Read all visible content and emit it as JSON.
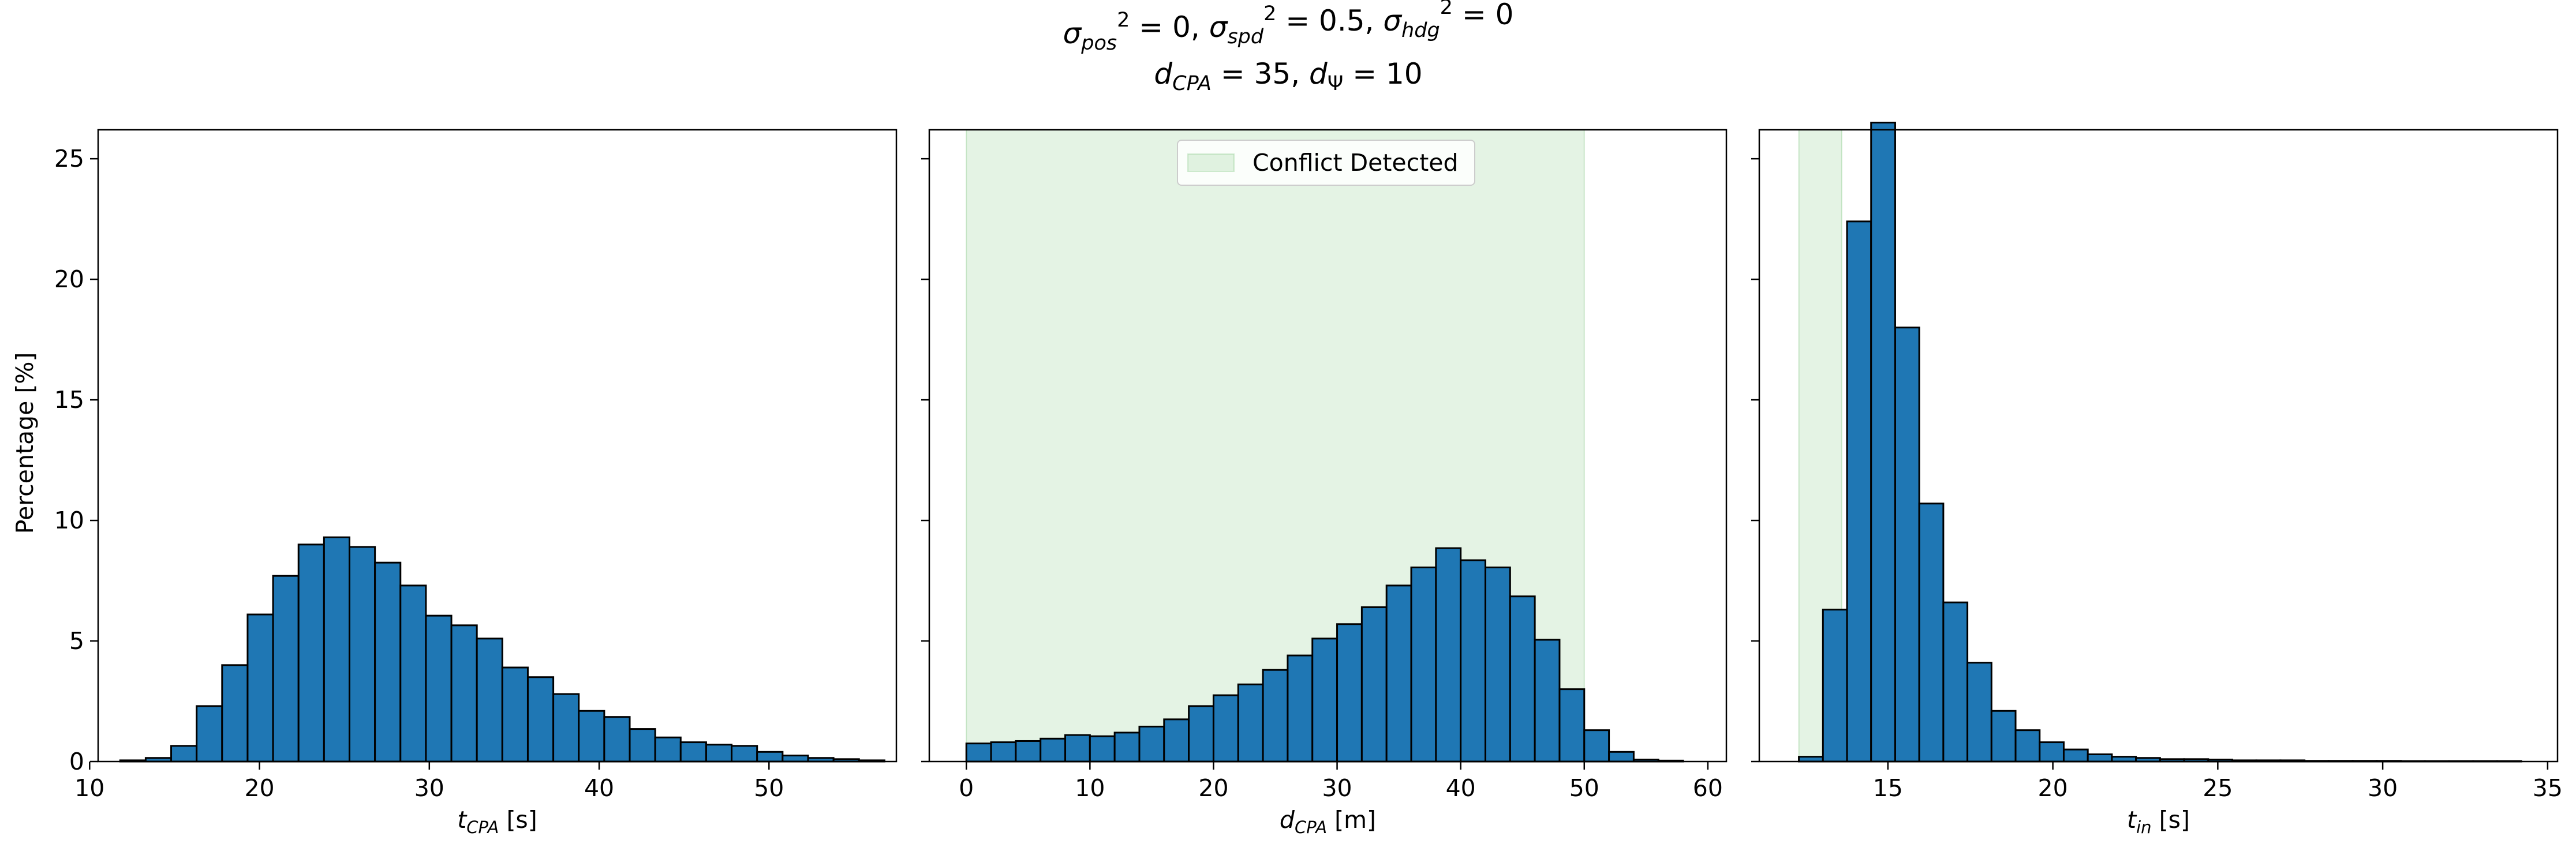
{
  "figure_title": {
    "line1_parts": [
      {
        "t": "σ",
        "style": "italic"
      },
      {
        "t": "pos",
        "style": "subitalic"
      },
      {
        "t": "2",
        "style": "sup"
      },
      {
        "t": " = 0, ",
        "style": "normal"
      },
      {
        "t": "σ",
        "style": "italic"
      },
      {
        "t": "spd",
        "style": "subitalic"
      },
      {
        "t": "2",
        "style": "sup"
      },
      {
        "t": " = 0.5, ",
        "style": "normal"
      },
      {
        "t": "σ",
        "style": "italic"
      },
      {
        "t": "hdg",
        "style": "subitalic"
      },
      {
        "t": "2",
        "style": "sup"
      },
      {
        "t": " = 0",
        "style": "normal"
      }
    ],
    "line2_parts": [
      {
        "t": "d",
        "style": "italic"
      },
      {
        "t": "CPA",
        "style": "subitalic"
      },
      {
        "t": " = 35, ",
        "style": "normal"
      },
      {
        "t": "d",
        "style": "italic"
      },
      {
        "t": "Ψ",
        "style": "sub"
      },
      {
        "t": " = 10",
        "style": "normal"
      }
    ]
  },
  "ylabel": "Percentage [%]",
  "legend": {
    "label": "Conflict Detected",
    "color": "#2ca02c"
  },
  "colors": {
    "bar_fill": "#1f77b4",
    "bar_edge": "#000000",
    "shade": "#2ca02c"
  },
  "chart_data": [
    {
      "type": "bar",
      "histogram": true,
      "xlabel_parts": [
        {
          "t": "t",
          "style": "italic"
        },
        {
          "t": "CPA",
          "style": "subitalic"
        },
        {
          "t": " [s]",
          "style": "normal"
        }
      ],
      "xlim": [
        10.5,
        57.5
      ],
      "ylim": [
        0,
        26.2
      ],
      "xticks": [
        10,
        20,
        30,
        40,
        50
      ],
      "yticks": [
        0,
        5,
        10,
        15,
        20,
        25
      ],
      "bin_edges": [
        11.8,
        13.3,
        14.8,
        16.3,
        17.8,
        19.3,
        20.8,
        22.3,
        23.8,
        25.3,
        26.8,
        28.3,
        29.8,
        31.3,
        32.8,
        34.3,
        35.8,
        37.3,
        38.8,
        40.3,
        41.8,
        43.3,
        44.8,
        46.3,
        47.8,
        49.3,
        50.8,
        52.3,
        53.8,
        55.3,
        56.8
      ],
      "values": [
        0.05,
        0.15,
        0.65,
        2.3,
        4.0,
        6.1,
        7.7,
        9.0,
        9.3,
        8.9,
        8.25,
        7.3,
        6.05,
        5.65,
        5.1,
        3.9,
        3.5,
        2.8,
        2.1,
        1.85,
        1.35,
        1.0,
        0.8,
        0.7,
        0.65,
        0.4,
        0.25,
        0.15,
        0.1,
        0.05
      ],
      "shade_range": null,
      "show_legend": false,
      "show_ytick_labels": true
    },
    {
      "type": "bar",
      "histogram": true,
      "xlabel_parts": [
        {
          "t": "d",
          "style": "italic"
        },
        {
          "t": "CPA",
          "style": "subitalic"
        },
        {
          "t": " [m]",
          "style": "normal"
        }
      ],
      "xlim": [
        -3,
        61.5
      ],
      "ylim": [
        0,
        26.2
      ],
      "xticks": [
        0,
        10,
        20,
        30,
        40,
        50,
        60
      ],
      "yticks": [
        0,
        5,
        10,
        15,
        20,
        25
      ],
      "bin_edges": [
        0,
        2,
        4,
        6,
        8,
        10,
        12,
        14,
        16,
        18,
        20,
        22,
        24,
        26,
        28,
        30,
        32,
        34,
        36,
        38,
        40,
        42,
        44,
        46,
        48,
        50,
        52,
        54,
        56,
        58,
        60
      ],
      "values": [
        0.75,
        0.8,
        0.85,
        0.95,
        1.1,
        1.05,
        1.2,
        1.45,
        1.75,
        2.3,
        2.75,
        3.2,
        3.8,
        4.4,
        5.1,
        5.7,
        6.4,
        7.3,
        8.05,
        8.85,
        8.35,
        8.05,
        6.85,
        5.05,
        3.0,
        1.3,
        0.4,
        0.08,
        0.04,
        0.0
      ],
      "shade_range": [
        0,
        50
      ],
      "show_legend": true,
      "show_ytick_labels": false
    },
    {
      "type": "bar",
      "histogram": true,
      "xlabel_parts": [
        {
          "t": "t",
          "style": "italic"
        },
        {
          "t": "in",
          "style": "subitalic"
        },
        {
          "t": " [s]",
          "style": "normal"
        }
      ],
      "xlim": [
        11.1,
        35.3
      ],
      "ylim": [
        0,
        26.2
      ],
      "xticks": [
        15,
        20,
        25,
        30,
        35
      ],
      "yticks": [
        0,
        5,
        10,
        15,
        20,
        25
      ],
      "bin_edges": [
        12.3,
        13.03,
        13.76,
        14.49,
        15.22,
        15.95,
        16.68,
        17.41,
        18.14,
        18.87,
        19.6,
        20.33,
        21.06,
        21.79,
        22.52,
        23.25,
        23.98,
        24.71,
        25.44,
        26.17,
        26.9,
        27.63,
        28.36,
        29.09,
        29.82,
        30.55,
        31.28,
        32.01,
        32.74,
        33.47,
        34.2
      ],
      "values": [
        0.2,
        6.3,
        22.4,
        26.5,
        18.0,
        10.7,
        6.6,
        4.1,
        2.1,
        1.3,
        0.8,
        0.5,
        0.3,
        0.2,
        0.15,
        0.1,
        0.1,
        0.08,
        0.05,
        0.05,
        0.05,
        0.03,
        0.03,
        0.03,
        0.03,
        0.02,
        0.02,
        0.02,
        0.02,
        0.02
      ],
      "shade_range": [
        12.3,
        13.6
      ],
      "show_legend": false,
      "show_ytick_labels": false
    }
  ]
}
